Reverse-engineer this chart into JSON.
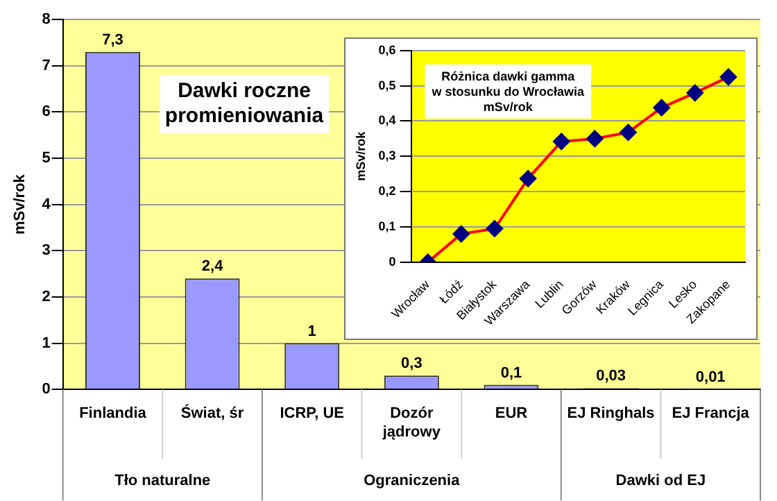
{
  "chart_data": [
    {
      "type": "bar",
      "title": "Dawki roczne promieniowania",
      "ylabel": "mSv/rok",
      "categories": [
        "Finlandia",
        "Świat, śr",
        "ICRP, UE",
        "Dozór jądrowy",
        "EUR",
        "EJ Ringhals",
        "EJ Francja"
      ],
      "values": [
        7.3,
        2.4,
        1,
        0.3,
        0.1,
        0.03,
        0.01
      ],
      "value_labels": [
        "7,3",
        "2,4",
        "1",
        "0,3",
        "0,1",
        "0,03",
        "0,01"
      ],
      "color": "#9999ff",
      "ylim": [
        0,
        8
      ],
      "yticks": [
        0,
        1,
        2,
        3,
        4,
        5,
        6,
        7,
        8
      ],
      "grid": "y",
      "annotations": [
        "Tło naturalne",
        "Ograniczenia",
        "Dawki od EJ"
      ]
    },
    {
      "type": "line",
      "title": "Różnica dawki gamma\nw stosunku do Wrocławia\nmSv/rok",
      "ylabel": "mSv/rok",
      "categories": [
        "Wrocław",
        "Łódź",
        "Białystok",
        "Warszawa",
        "Lublin",
        "Gorzów",
        "Kraków",
        "Legnica",
        "Lesko",
        "Zakopane"
      ],
      "values": [
        0,
        0.08,
        0.095,
        0.237,
        0.342,
        0.35,
        0.368,
        0.438,
        0.48,
        0.525
      ],
      "color": "#ff0000",
      "colors": [
        "#000080",
        "#000080",
        "#000080",
        "#000080",
        "#000080",
        "#000080",
        "#000080",
        "#000080",
        "#000080",
        "#000080"
      ],
      "marker": "diamond",
      "line_style": "solid",
      "ylim": [
        0,
        0.6
      ],
      "yticks": [
        {
          "value": 0,
          "label": "0"
        },
        {
          "value": 0.1,
          "label": "0,1"
        },
        {
          "value": 0.2,
          "label": "0,2"
        },
        {
          "value": 0.3,
          "label": "0,3"
        },
        {
          "value": 0.4,
          "label": "0,4"
        },
        {
          "value": 0.5,
          "label": "0,5"
        },
        {
          "value": 0.6,
          "label": "0,6"
        }
      ],
      "grid": "y"
    }
  ]
}
